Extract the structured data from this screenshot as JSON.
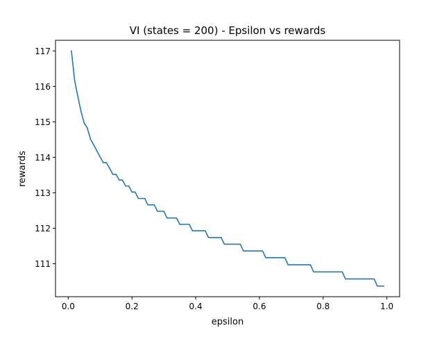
{
  "chart_data": {
    "type": "line",
    "title": "VI (states = 200) - Epsilon vs rewards",
    "xlabel": "epsilon",
    "ylabel": "rewards",
    "xlim": [
      -0.04,
      1.04
    ],
    "ylim": [
      110.07,
      117.3
    ],
    "xticks": [
      0.0,
      0.2,
      0.4,
      0.6,
      0.8,
      1.0
    ],
    "xtick_labels": [
      "0.0",
      "0.2",
      "0.4",
      "0.6",
      "0.8",
      "1.0"
    ],
    "yticks": [
      111,
      112,
      113,
      114,
      115,
      116,
      117
    ],
    "ytick_labels": [
      "111",
      "112",
      "113",
      "114",
      "115",
      "116",
      "117"
    ],
    "grid": false,
    "legend": "none",
    "series": [
      {
        "color": "#1f77b4",
        "x": [
          0.01,
          0.02,
          0.03,
          0.04,
          0.05,
          0.06,
          0.07,
          0.08,
          0.09,
          0.1,
          0.11,
          0.12,
          0.13,
          0.14,
          0.15,
          0.16,
          0.17,
          0.18,
          0.19,
          0.2,
          0.21,
          0.22,
          0.23,
          0.24,
          0.25,
          0.26,
          0.27,
          0.28,
          0.29,
          0.3,
          0.31,
          0.32,
          0.33,
          0.34,
          0.35,
          0.36,
          0.37,
          0.38,
          0.39,
          0.4,
          0.41,
          0.42,
          0.43,
          0.44,
          0.45,
          0.46,
          0.47,
          0.48,
          0.49,
          0.5,
          0.51,
          0.52,
          0.53,
          0.54,
          0.55,
          0.56,
          0.57,
          0.58,
          0.59,
          0.6,
          0.61,
          0.62,
          0.63,
          0.64,
          0.65,
          0.66,
          0.67,
          0.68,
          0.69,
          0.7,
          0.71,
          0.72,
          0.73,
          0.74,
          0.75,
          0.76,
          0.77,
          0.78,
          0.79,
          0.8,
          0.81,
          0.82,
          0.83,
          0.84,
          0.85,
          0.86,
          0.87,
          0.88,
          0.89,
          0.9,
          0.91,
          0.92,
          0.93,
          0.94,
          0.95,
          0.96,
          0.97,
          0.98,
          0.99
        ],
        "y": [
          117.0,
          116.17,
          115.72,
          115.3,
          114.97,
          114.82,
          114.51,
          114.35,
          114.18,
          114.01,
          113.85,
          113.85,
          113.69,
          113.52,
          113.52,
          113.36,
          113.36,
          113.19,
          113.19,
          113.02,
          113.02,
          112.84,
          112.84,
          112.84,
          112.66,
          112.66,
          112.66,
          112.48,
          112.48,
          112.48,
          112.29,
          112.29,
          112.29,
          112.29,
          112.11,
          112.11,
          112.11,
          112.11,
          111.93,
          111.93,
          111.93,
          111.93,
          111.93,
          111.74,
          111.74,
          111.74,
          111.74,
          111.74,
          111.55,
          111.55,
          111.55,
          111.55,
          111.55,
          111.55,
          111.36,
          111.36,
          111.36,
          111.36,
          111.36,
          111.36,
          111.36,
          111.17,
          111.17,
          111.17,
          111.17,
          111.17,
          111.17,
          111.17,
          110.97,
          110.97,
          110.97,
          110.97,
          110.97,
          110.97,
          110.97,
          110.97,
          110.77,
          110.77,
          110.77,
          110.77,
          110.77,
          110.77,
          110.77,
          110.77,
          110.77,
          110.77,
          110.57,
          110.57,
          110.57,
          110.57,
          110.57,
          110.57,
          110.57,
          110.57,
          110.57,
          110.57,
          110.37,
          110.37,
          110.37
        ]
      }
    ]
  }
}
